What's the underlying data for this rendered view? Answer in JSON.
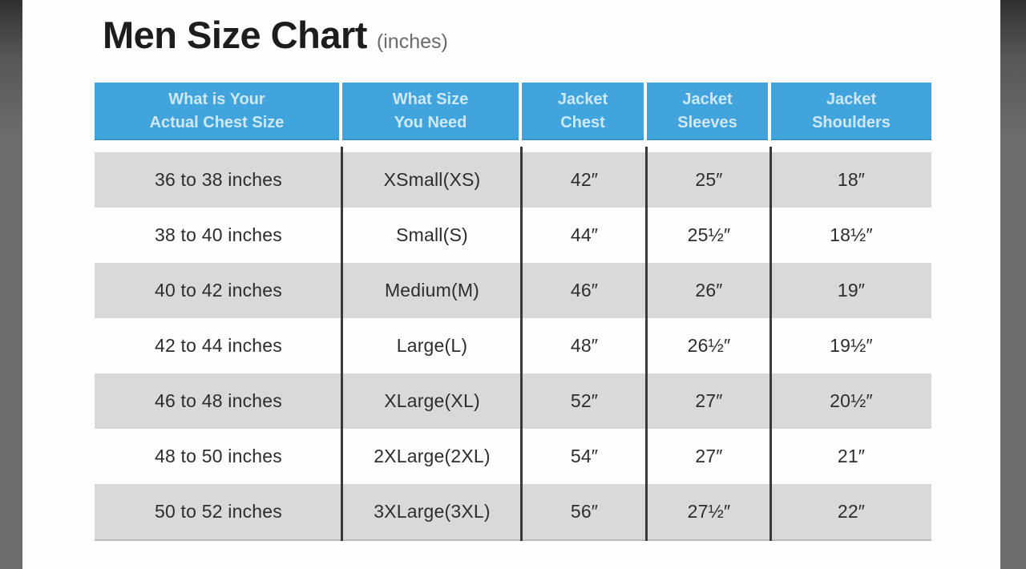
{
  "title": {
    "text": "Men Size Chart",
    "unit_note": "(inches)"
  },
  "colors": {
    "header_bg": "#42A4DC",
    "header_text": "#CDE9F8",
    "row_alt_bg": "#D9D9D9",
    "row_bg": "#FDFDFD",
    "body_text": "#2D2D2D",
    "divider": "#3A3A3A",
    "side_bar": "#6C6C6C"
  },
  "chart_data": {
    "type": "table",
    "title": "Men Size Chart (inches)",
    "unit": "inches",
    "columns": [
      {
        "line1": "What is Your",
        "line2": "Actual Chest Size"
      },
      {
        "line1": "What Size",
        "line2": "You Need"
      },
      {
        "line1": "Jacket",
        "line2": "Chest"
      },
      {
        "line1": "Jacket",
        "line2": "Sleeves"
      },
      {
        "line1": "Jacket",
        "line2": "Shoulders"
      }
    ],
    "rows": [
      [
        "36 to 38 inches",
        "XSmall(XS)",
        "42″",
        "25″",
        "18″"
      ],
      [
        "38 to 40 inches",
        "Small(S)",
        "44″",
        "25½″",
        "18½″"
      ],
      [
        "40 to 42 inches",
        "Medium(M)",
        "46″",
        "26″",
        "19″"
      ],
      [
        "42 to 44 inches",
        "Large(L)",
        "48″",
        "26½″",
        "19½″"
      ],
      [
        "46 to 48 inches",
        "XLarge(XL)",
        "52″",
        "27″",
        "20½″"
      ],
      [
        "48 to 50 inches",
        "2XLarge(2XL)",
        "54″",
        "27″",
        "21″"
      ],
      [
        "50 to 52 inches",
        "3XLarge(3XL)",
        "56″",
        "27½″",
        "22″"
      ]
    ]
  }
}
